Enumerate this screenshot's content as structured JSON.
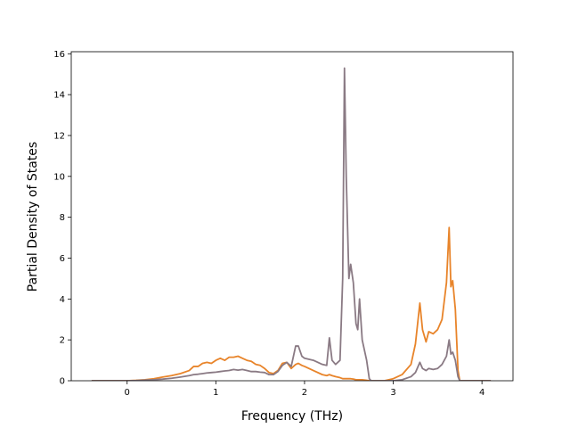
{
  "chart_data": {
    "type": "line",
    "xlabel": "Frequency (THz)",
    "ylabel": "Partial Density of States",
    "x": [
      -0.4,
      0.0,
      0.1,
      0.2,
      0.3,
      0.4,
      0.5,
      0.6,
      0.7,
      0.75,
      0.8,
      0.85,
      0.9,
      0.95,
      1.0,
      1.05,
      1.1,
      1.15,
      1.2,
      1.25,
      1.3,
      1.35,
      1.4,
      1.45,
      1.5,
      1.55,
      1.6,
      1.65,
      1.7,
      1.75,
      1.8,
      1.85,
      1.9,
      1.93,
      1.97,
      2.0,
      2.1,
      2.2,
      2.25,
      2.28,
      2.31,
      2.35,
      2.4,
      2.43,
      2.45,
      2.47,
      2.5,
      2.52,
      2.55,
      2.58,
      2.6,
      2.62,
      2.65,
      2.7,
      2.73,
      2.75,
      2.9,
      3.0,
      3.1,
      3.2,
      3.25,
      3.3,
      3.33,
      3.37,
      3.4,
      3.45,
      3.5,
      3.55,
      3.6,
      3.63,
      3.65,
      3.67,
      3.7,
      3.73,
      3.75,
      4.1
    ],
    "series": [
      {
        "color": "#e8842a",
        "values": [
          0,
          0,
          0.02,
          0.05,
          0.1,
          0.18,
          0.25,
          0.35,
          0.5,
          0.7,
          0.7,
          0.85,
          0.9,
          0.85,
          1.0,
          1.1,
          1.0,
          1.15,
          1.15,
          1.2,
          1.1,
          1.0,
          0.95,
          0.8,
          0.75,
          0.6,
          0.4,
          0.35,
          0.5,
          0.85,
          0.9,
          0.6,
          0.8,
          0.85,
          0.75,
          0.7,
          0.5,
          0.3,
          0.25,
          0.3,
          0.25,
          0.2,
          0.15,
          0.1,
          0.1,
          0.1,
          0.1,
          0.1,
          0.08,
          0.05,
          0.05,
          0.05,
          0.05,
          0.02,
          0,
          0,
          0,
          0.1,
          0.3,
          0.8,
          1.8,
          3.8,
          2.5,
          1.9,
          2.4,
          2.3,
          2.5,
          3.0,
          4.8,
          7.5,
          4.6,
          4.9,
          3.5,
          0.5,
          0,
          0
        ]
      },
      {
        "color": "#8a7a84",
        "values": [
          0,
          0,
          0.01,
          0.03,
          0.05,
          0.08,
          0.12,
          0.18,
          0.25,
          0.3,
          0.32,
          0.35,
          0.38,
          0.4,
          0.42,
          0.45,
          0.48,
          0.5,
          0.55,
          0.52,
          0.55,
          0.5,
          0.45,
          0.45,
          0.42,
          0.4,
          0.3,
          0.3,
          0.45,
          0.75,
          0.9,
          0.7,
          1.7,
          1.7,
          1.2,
          1.1,
          1.0,
          0.8,
          0.75,
          2.1,
          1.0,
          0.8,
          1.0,
          5.0,
          15.3,
          10.0,
          5.0,
          5.7,
          4.8,
          2.8,
          2.5,
          4.0,
          2.0,
          1.0,
          0.1,
          0,
          0,
          0,
          0.05,
          0.2,
          0.4,
          0.9,
          0.6,
          0.5,
          0.6,
          0.55,
          0.6,
          0.8,
          1.2,
          2.0,
          1.3,
          1.4,
          1.0,
          0.2,
          0,
          0
        ]
      }
    ],
    "xlim": [
      -0.63,
      4.35
    ],
    "ylim": [
      0,
      16.1
    ],
    "xticks": [
      0,
      1,
      2,
      3,
      4
    ],
    "yticks": [
      0,
      2,
      4,
      6,
      8,
      10,
      12,
      14,
      16
    ]
  }
}
